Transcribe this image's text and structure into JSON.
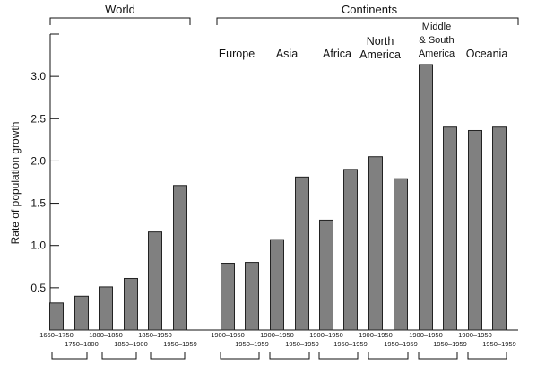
{
  "chart_data": {
    "type": "bar",
    "ylabel": "Rate of population growth",
    "ylim": [
      0,
      3.5
    ],
    "yticks": [
      "0.5",
      "1.0",
      "1.5",
      "2.0",
      "2.5",
      "3.0"
    ],
    "ytick_values": [
      0.5,
      1.0,
      1.5,
      2.0,
      2.5,
      3.0
    ],
    "grid": false,
    "bar_color": "#808080",
    "bar_stroke": "#222222",
    "groups": [
      {
        "name": "World",
        "categories": [
          "1650–1750",
          "1750–1800",
          "1800–1850",
          "1850–1900",
          "1850–1950",
          "1950–1959"
        ],
        "values": [
          0.32,
          0.4,
          0.51,
          0.61,
          1.16,
          1.71
        ]
      },
      {
        "name": "Continents",
        "subgroups": [
          {
            "name": "Europe",
            "categories": [
              "1900–1950",
              "1950–1959"
            ],
            "values": [
              0.79,
              0.8
            ]
          },
          {
            "name": "Asia",
            "categories": [
              "1900–1950",
              "1950–1959"
            ],
            "values": [
              1.07,
              1.81
            ]
          },
          {
            "name": "Africa",
            "categories": [
              "1900–1950",
              "1950–1959"
            ],
            "values": [
              1.3,
              1.9
            ]
          },
          {
            "name": "North\nAmerica",
            "categories": [
              "1900–1950",
              "1950–1959"
            ],
            "values": [
              2.05,
              1.79
            ]
          },
          {
            "name": "Middle\n& South\nAmerica",
            "categories": [
              "1900–1950",
              "1950–1959"
            ],
            "values": [
              3.14,
              2.4
            ]
          },
          {
            "name": "Oceania",
            "categories": [
              "1900–1950",
              "1950–1959"
            ],
            "values": [
              2.36,
              2.4
            ]
          }
        ]
      }
    ]
  }
}
